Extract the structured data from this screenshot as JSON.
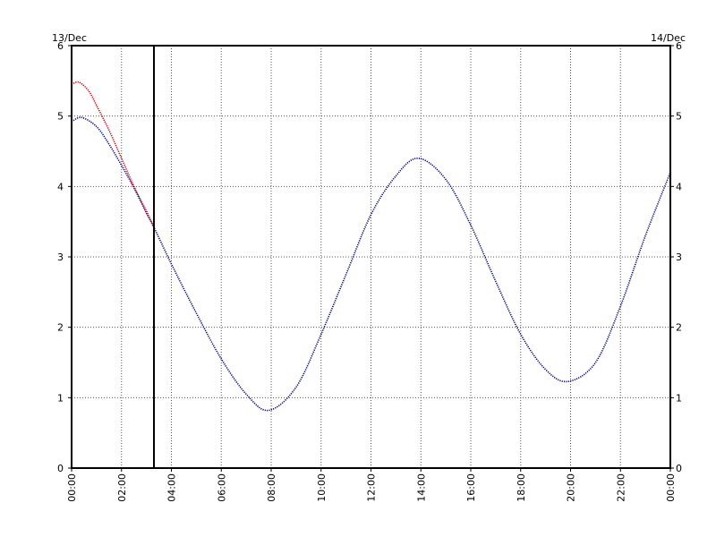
{
  "chart_data": {
    "type": "line",
    "title": "",
    "xlabel": "",
    "ylabel": "",
    "date_left": "13/Dec",
    "date_right": "14/Dec",
    "x_ticks": [
      "00:00",
      "02:00",
      "04:00",
      "06:00",
      "08:00",
      "10:00",
      "12:00",
      "14:00",
      "16:00",
      "18:00",
      "20:00",
      "22:00",
      "00:00"
    ],
    "xlim": [
      0,
      24
    ],
    "ylim": [
      0,
      6
    ],
    "y_ticks": [
      0,
      1,
      2,
      3,
      4,
      5,
      6
    ],
    "grid": true,
    "marker_time_hours": 3.3,
    "series": [
      {
        "color": "#00008b",
        "x": [
          0.0,
          0.4,
          1.0,
          1.5,
          2.0,
          2.5,
          3.0,
          3.3,
          4.0,
          5.0,
          6.0,
          7.0,
          7.9,
          9.0,
          10.0,
          11.0,
          12.0,
          13.0,
          13.9,
          15.0,
          16.0,
          17.0,
          18.0,
          19.0,
          19.9,
          21.0,
          22.0,
          23.0,
          24.0
        ],
        "values": [
          4.92,
          4.98,
          4.85,
          4.6,
          4.3,
          3.98,
          3.62,
          3.42,
          2.9,
          2.2,
          1.55,
          1.05,
          0.82,
          1.15,
          1.9,
          2.75,
          3.6,
          4.15,
          4.4,
          4.1,
          3.45,
          2.65,
          1.9,
          1.4,
          1.23,
          1.5,
          2.3,
          3.3,
          4.2
        ]
      },
      {
        "color": "#cc0000",
        "x": [
          0.0,
          0.3,
          0.7,
          1.0,
          1.5,
          2.0,
          2.5,
          3.0,
          3.3
        ],
        "values": [
          5.45,
          5.48,
          5.35,
          5.15,
          4.8,
          4.4,
          4.0,
          3.65,
          3.42
        ]
      }
    ]
  }
}
